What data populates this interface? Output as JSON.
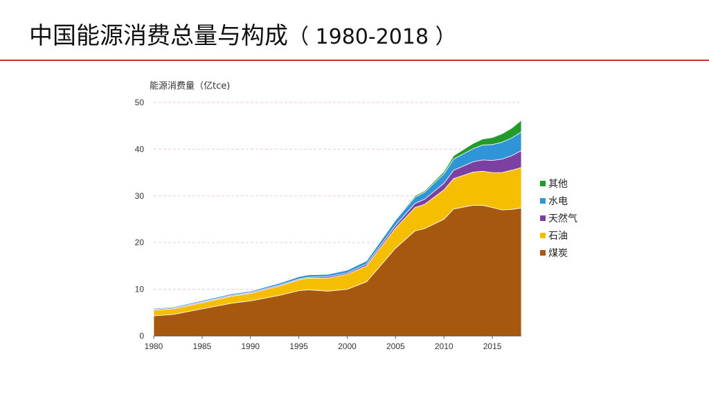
{
  "page": {
    "title_main": "中国能源消费总量与构成",
    "title_years": "（ 1980-2018 ）"
  },
  "colors": {
    "title_rule": "#c0392b",
    "grid": "#f0c8dc",
    "coal": "#a6580e",
    "oil": "#f6be00",
    "gas": "#7c3fa2",
    "hydro": "#2f95d6",
    "other": "#229a2c"
  },
  "chart_data": {
    "type": "area",
    "stacked": true,
    "title": "",
    "ylabel": "能源消费量（亿tce)",
    "xlabel": "",
    "ylim": [
      0,
      50
    ],
    "yticks": [
      0,
      10,
      20,
      30,
      40,
      50
    ],
    "xlim": [
      1980,
      2018
    ],
    "xticks": [
      1980,
      1985,
      1990,
      1995,
      2000,
      2005,
      2010,
      2015
    ],
    "grid": true,
    "legend_position": "right",
    "x": [
      1980,
      1982,
      1985,
      1988,
      1990,
      1993,
      1995,
      1996,
      1998,
      2000,
      2002,
      2005,
      2007,
      2008,
      2010,
      2011,
      2013,
      2014,
      2015,
      2016,
      2017,
      2018
    ],
    "series": [
      {
        "name": "煤炭",
        "color": "#a6580e",
        "values": [
          4.3,
          4.6,
          5.8,
          7.0,
          7.5,
          8.7,
          9.7,
          9.9,
          9.6,
          10.0,
          11.6,
          18.8,
          22.5,
          23.0,
          25.0,
          27.2,
          28.0,
          28.0,
          27.5,
          27.0,
          27.1,
          27.4
        ]
      },
      {
        "name": "石油",
        "color": "#f6be00",
        "values": [
          1.2,
          1.2,
          1.3,
          1.5,
          1.6,
          2.0,
          2.3,
          2.5,
          2.8,
          3.2,
          3.4,
          4.3,
          5.0,
          5.2,
          6.3,
          6.5,
          7.1,
          7.3,
          7.5,
          8.0,
          8.4,
          8.7
        ]
      },
      {
        "name": "天然气",
        "color": "#7c3fa2",
        "values": [
          0.2,
          0.2,
          0.2,
          0.2,
          0.2,
          0.2,
          0.2,
          0.2,
          0.3,
          0.3,
          0.4,
          0.6,
          0.9,
          1.1,
          1.4,
          1.8,
          2.2,
          2.4,
          2.6,
          2.9,
          3.1,
          3.6
        ]
      },
      {
        "name": "水电",
        "color": "#2f95d6",
        "values": [
          0.2,
          0.2,
          0.3,
          0.3,
          0.3,
          0.4,
          0.5,
          0.5,
          0.5,
          0.6,
          0.7,
          1.1,
          1.3,
          1.5,
          2.0,
          2.4,
          2.8,
          3.2,
          3.4,
          3.6,
          3.8,
          4.0
        ]
      },
      {
        "name": "其他",
        "color": "#229a2c",
        "values": [
          0.0,
          0.0,
          0.0,
          0.1,
          0.1,
          0.1,
          0.1,
          0.1,
          0.1,
          0.1,
          0.1,
          0.2,
          0.3,
          0.3,
          0.5,
          0.7,
          1.1,
          1.3,
          1.5,
          1.8,
          2.1,
          2.5
        ]
      }
    ],
    "legend_order": [
      "其他",
      "水电",
      "天然气",
      "石油",
      "煤炭"
    ]
  }
}
